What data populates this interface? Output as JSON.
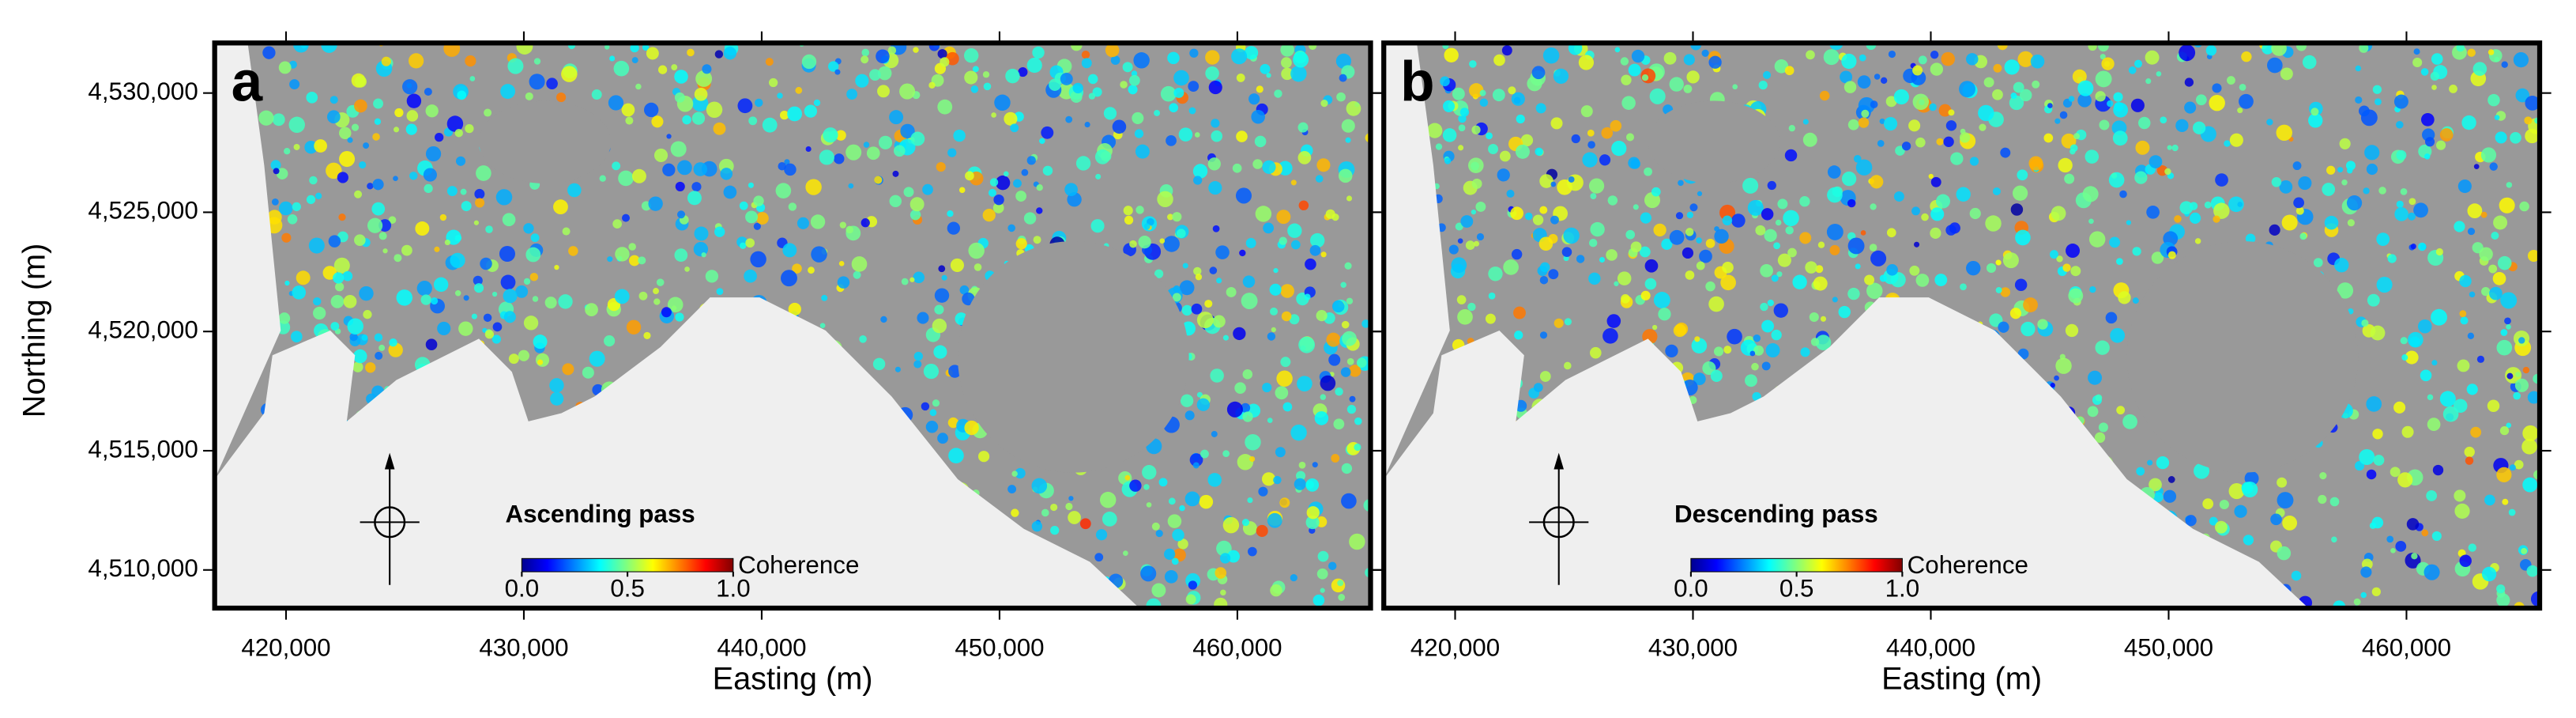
{
  "axes": {
    "x_label": "Easting (m)",
    "y_label": "Northing (m)",
    "xlim": [
      417000,
      465600
    ],
    "ylim": [
      4508400,
      4532100
    ],
    "xticks": [
      {
        "value": 420000,
        "label": "420,000"
      },
      {
        "value": 430000,
        "label": "430,000"
      },
      {
        "value": 440000,
        "label": "440,000"
      },
      {
        "value": 450000,
        "label": "450,000"
      },
      {
        "value": 460000,
        "label": "460,000"
      }
    ],
    "yticks": [
      {
        "value": 4510000,
        "label": "4,510,000"
      },
      {
        "value": 4515000,
        "label": "4,515,000"
      },
      {
        "value": 4520000,
        "label": "4,520,000"
      },
      {
        "value": 4525000,
        "label": "4,525,000"
      },
      {
        "value": 4530000,
        "label": "4,530,000"
      }
    ]
  },
  "colorbar": {
    "label": "Coherence",
    "range": [
      0,
      1
    ],
    "ticks": [
      {
        "value": 0,
        "label": "0.0"
      },
      {
        "value": 0.5,
        "label": "0.5"
      },
      {
        "value": 1,
        "label": "1.0"
      }
    ]
  },
  "panels": [
    {
      "letter": "a",
      "pass": "Ascending pass"
    },
    {
      "letter": "b",
      "pass": "Descending pass"
    }
  ]
}
